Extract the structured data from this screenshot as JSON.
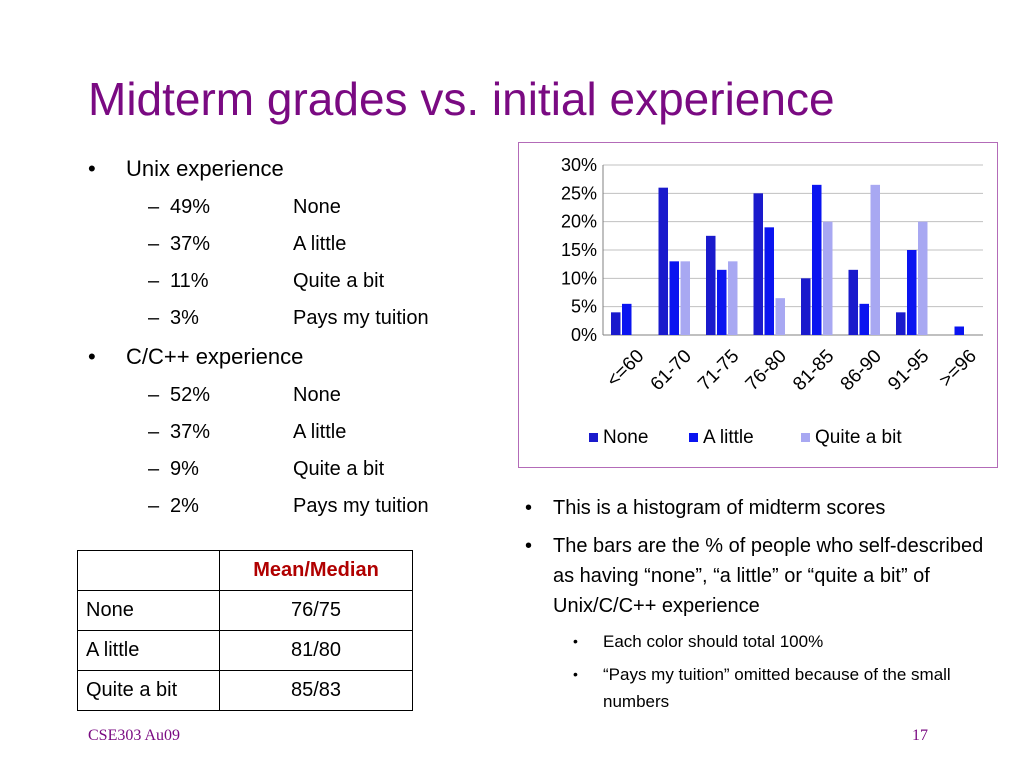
{
  "slide": {
    "title": "Midterm grades vs. initial experience",
    "footer_left": "CSE303 Au09",
    "page_number": "17"
  },
  "left": {
    "unix": {
      "heading": "Unix experience",
      "items": [
        {
          "pct": "49%",
          "label": "None"
        },
        {
          "pct": "37%",
          "label": "A little"
        },
        {
          "pct": "11%",
          "label": "Quite a bit"
        },
        {
          "pct": "3%",
          "label": "Pays my tuition"
        }
      ]
    },
    "cpp": {
      "heading": "C/C++ experience",
      "items": [
        {
          "pct": "52%",
          "label": "None"
        },
        {
          "pct": "37%",
          "label": "A little"
        },
        {
          "pct": "9%",
          "label": "Quite a bit"
        },
        {
          "pct": "2%",
          "label": "Pays my tuition"
        }
      ]
    }
  },
  "table": {
    "header": [
      "",
      "Mean/Median"
    ],
    "rows": [
      [
        "None",
        "76/75"
      ],
      [
        "A little",
        "81/80"
      ],
      [
        "Quite a bit",
        "85/83"
      ]
    ]
  },
  "notes": {
    "bullets": [
      "This is a histogram of midterm scores",
      "The bars are the % of people who self-described as having “none”, “a little” or “quite a bit” of Unix/C/C++ experience"
    ],
    "sub_bullets": [
      "Each color should total 100%",
      "“Pays my tuition” omitted because of the small numbers"
    ]
  },
  "chart_data": {
    "type": "bar",
    "categories": [
      "<=60",
      "61-70",
      "71-75",
      "76-80",
      "81-85",
      "86-90",
      "91-95",
      ">=96"
    ],
    "series": [
      {
        "name": "None",
        "color": "#1a1acc",
        "values": [
          4,
          26,
          17.5,
          25,
          10,
          11.5,
          4,
          0
        ]
      },
      {
        "name": "A little",
        "color": "#0a14f0",
        "values": [
          5.5,
          13,
          11.5,
          19,
          26.5,
          5.5,
          15,
          1.5
        ]
      },
      {
        "name": "Quite a bit",
        "color": "#a8a8f2",
        "values": [
          0,
          13,
          13,
          6.5,
          20,
          26.5,
          20,
          0
        ]
      }
    ],
    "yticks": [
      "0%",
      "5%",
      "10%",
      "15%",
      "20%",
      "25%",
      "30%"
    ],
    "ylim": [
      0,
      30
    ],
    "legend": "bottom",
    "grid": true
  }
}
